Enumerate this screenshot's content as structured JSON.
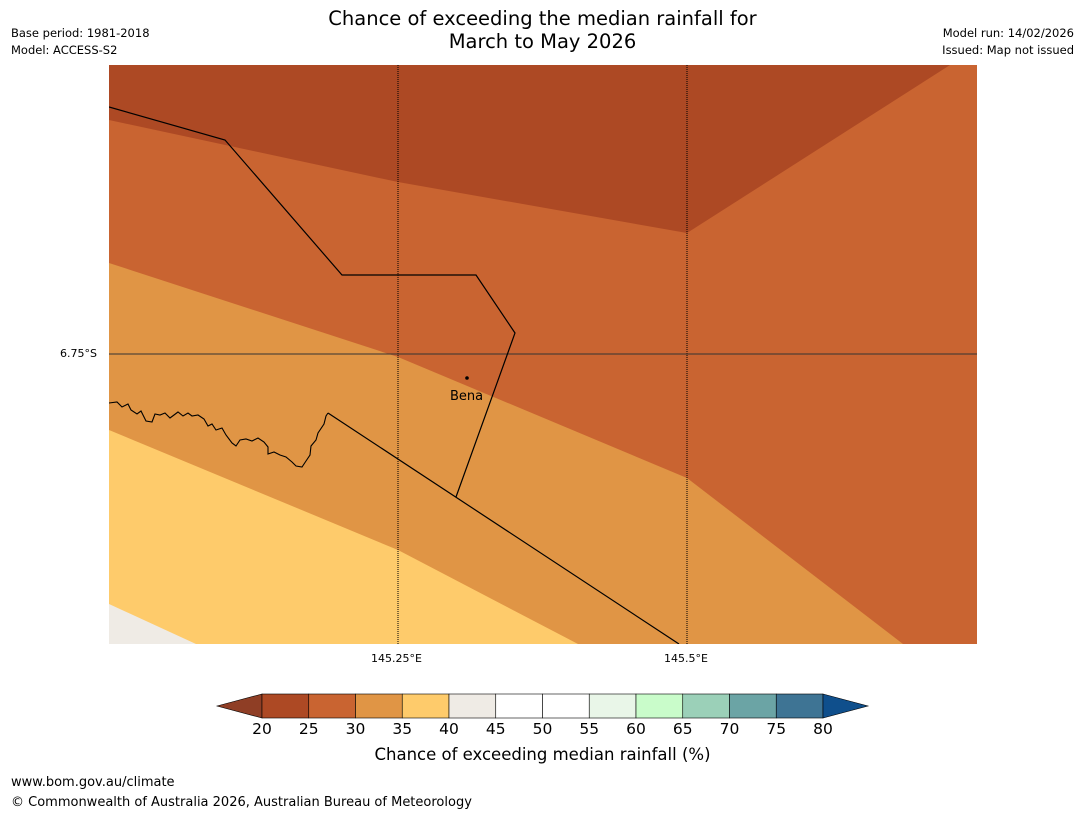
{
  "title": {
    "line1": "Chance of exceeding the median rainfall for",
    "line2": "March to May 2026"
  },
  "meta": {
    "base_period": "Base period: 1981-2018",
    "model": "Model: ACCESS-S2",
    "model_run": "Model run: 14/02/2026",
    "issued": "Issued: Map not issued"
  },
  "map": {
    "lat_label": "6.75°S",
    "lon_labels": [
      "145.25°E",
      "145.5°E"
    ],
    "place": "Bena"
  },
  "colorbar": {
    "ticks": [
      "20",
      "25",
      "30",
      "35",
      "40",
      "45",
      "50",
      "55",
      "60",
      "65",
      "70",
      "75",
      "80"
    ],
    "label": "Chance of exceeding median rainfall (%)",
    "colors": {
      "lt20": "#8f3e25",
      "c20_25": "#ad4924",
      "c25_30": "#c96431",
      "c30_35": "#e09545",
      "c35_40": "#fecb6b",
      "c40_45": "#efebe5",
      "c45_50": "#ffffff",
      "c50_55": "#ffffff",
      "c55_60": "#e9f6e8",
      "c60_65": "#c9fcca",
      "c65_70": "#9bd0b8",
      "c70_75": "#6ba4a5",
      "c75_80": "#3e7494",
      "gt80": "#0f4f8c"
    }
  },
  "footer": {
    "url": "www.bom.gov.au/climate",
    "copyright": "© Commonwealth of Australia 2026, Australian Bureau of Meteorology"
  }
}
